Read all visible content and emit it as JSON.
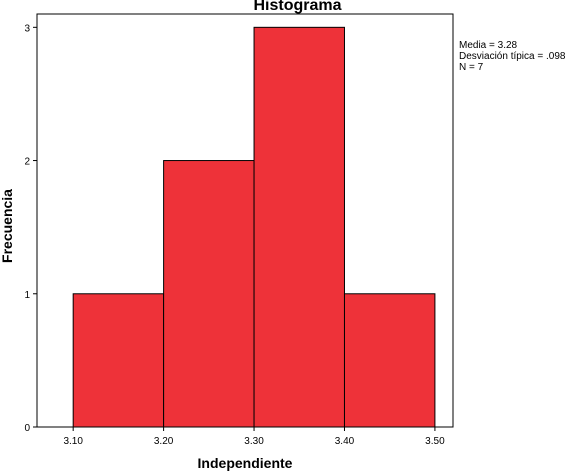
{
  "chart_data": {
    "type": "bar",
    "title": "Histograma",
    "xlabel": "Independiente",
    "ylabel": "Frecuencia",
    "bins": [
      {
        "x0": 3.1,
        "x1": 3.2,
        "value": 1
      },
      {
        "x0": 3.2,
        "x1": 3.3,
        "value": 2
      },
      {
        "x0": 3.3,
        "x1": 3.4,
        "value": 3
      },
      {
        "x0": 3.4,
        "x1": 3.5,
        "value": 1
      }
    ],
    "x_ticks": [
      "3.10",
      "3.20",
      "3.30",
      "3.40",
      "3.50"
    ],
    "y_ticks": [
      "0",
      "1",
      "2",
      "3"
    ],
    "xlim": [
      3.06,
      3.52
    ],
    "ylim": [
      0,
      3.1
    ],
    "bar_color": "#ee3239",
    "grid": false,
    "stats": [
      "Media = 3.28",
      "Desviación típica = .098",
      "N = 7"
    ]
  }
}
